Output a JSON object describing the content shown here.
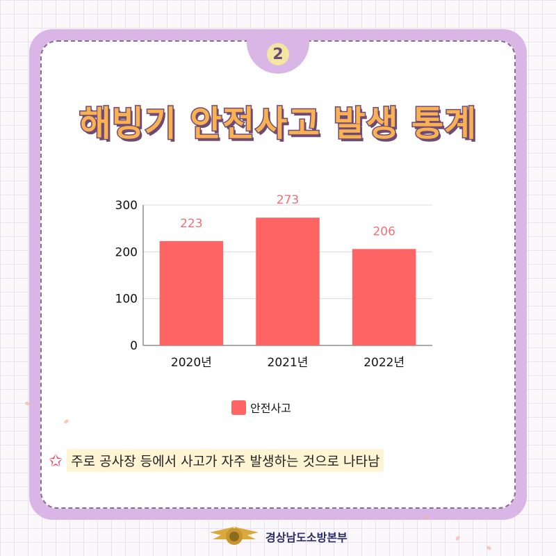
{
  "badge": {
    "number": "2"
  },
  "title": "해빙기 안전사고 발생 통계",
  "chart_data": {
    "type": "bar",
    "categories": [
      "2020년",
      "2021년",
      "2022년"
    ],
    "series": [
      {
        "name": "안전사고",
        "values": [
          223,
          273,
          206
        ]
      }
    ],
    "data_labels": [
      "223",
      "273",
      "206"
    ],
    "y_ticks": [
      "0",
      "100",
      "200",
      "300"
    ],
    "ylim": [
      0,
      300
    ],
    "grid": true,
    "legend": "bottom-center",
    "bar_color": "#ff6464",
    "label_color": "#f0707a"
  },
  "legend": {
    "label": "안전사고"
  },
  "note": {
    "text": "주로 공사장 등에서 사고가 자주 발생하는 것으로 나타남"
  },
  "footer": {
    "org": "경상남도소방본부"
  },
  "colors": {
    "frame": "#d9b6e6",
    "title_fill": "#f9b152",
    "title_stroke": "#6e4b74"
  }
}
